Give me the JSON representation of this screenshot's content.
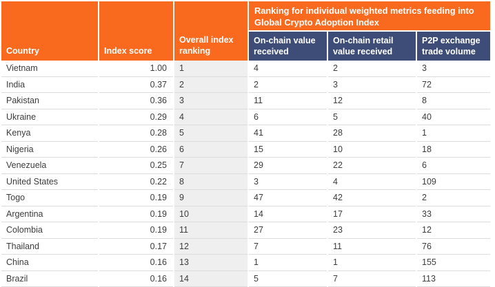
{
  "colors": {
    "orange": "#f96a1f",
    "navy": "#3e4d77",
    "row_alt": "#efefef",
    "grid_line": "#dcdcdc",
    "header_text": "#ffffff",
    "body_text": "#3c3c3c"
  },
  "table": {
    "headers": {
      "country": "Country",
      "index_score": "Index score",
      "overall_ranking": "Overall index ranking",
      "metrics_banner": "Ranking for individual weighted metrics feeding into Global Crypto Adoption Index",
      "on_chain_value": "On-chain value received",
      "on_chain_retail": "On-chain retail value received",
      "p2p_volume": "P2P exchange trade volume"
    }
  },
  "chart_data": {
    "type": "table",
    "title": "Ranking for individual weighted metrics feeding into Global Crypto Adoption Index",
    "columns": [
      "Country",
      "Index score",
      "Overall index ranking",
      "On-chain value received",
      "On-chain retail value received",
      "P2P exchange trade volume"
    ],
    "rows": [
      [
        "Vietnam",
        "1.00",
        "1",
        "4",
        "2",
        "3"
      ],
      [
        "India",
        "0.37",
        "2",
        "2",
        "3",
        "72"
      ],
      [
        "Pakistan",
        "0.36",
        "3",
        "11",
        "12",
        "8"
      ],
      [
        "Ukraine",
        "0.29",
        "4",
        "6",
        "5",
        "40"
      ],
      [
        "Kenya",
        "0.28",
        "5",
        "41",
        "28",
        "1"
      ],
      [
        "Nigeria",
        "0.26",
        "6",
        "15",
        "10",
        "18"
      ],
      [
        "Venezuela",
        "0.25",
        "7",
        "29",
        "22",
        "6"
      ],
      [
        "United States",
        "0.22",
        "8",
        "3",
        "4",
        "109"
      ],
      [
        "Togo",
        "0.19",
        "9",
        "47",
        "42",
        "2"
      ],
      [
        "Argentina",
        "0.19",
        "10",
        "14",
        "17",
        "33"
      ],
      [
        "Colombia",
        "0.19",
        "11",
        "27",
        "23",
        "12"
      ],
      [
        "Thailand",
        "0.17",
        "12",
        "7",
        "11",
        "76"
      ],
      [
        "China",
        "0.16",
        "13",
        "1",
        "1",
        "155"
      ],
      [
        "Brazil",
        "0.16",
        "14",
        "5",
        "7",
        "113"
      ]
    ]
  }
}
